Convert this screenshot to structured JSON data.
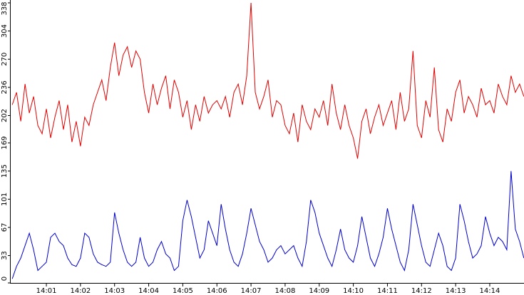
{
  "chart_data": {
    "type": "line",
    "categories": [
      null,
      null,
      null,
      null,
      null,
      null,
      null,
      null,
      "14:01",
      null,
      null,
      null,
      null,
      null,
      null,
      null,
      "14:02",
      null,
      null,
      null,
      null,
      null,
      null,
      null,
      "14:03",
      null,
      null,
      null,
      null,
      null,
      null,
      null,
      "14:04",
      null,
      null,
      null,
      null,
      null,
      null,
      null,
      "14:05",
      null,
      null,
      null,
      null,
      null,
      null,
      null,
      "14:06",
      null,
      null,
      null,
      null,
      null,
      null,
      null,
      "14:07",
      null,
      null,
      null,
      null,
      null,
      null,
      null,
      "14:08",
      null,
      null,
      null,
      null,
      null,
      null,
      null,
      "14:09",
      null,
      null,
      null,
      null,
      null,
      null,
      null,
      "14:10",
      null,
      null,
      null,
      null,
      null,
      null,
      null,
      "14:11",
      null,
      null,
      null,
      null,
      null,
      null,
      null,
      "14:12",
      null,
      null,
      null,
      null,
      null,
      null,
      null,
      "14:13",
      null,
      null,
      null,
      null,
      null,
      null,
      null,
      "14:14",
      null,
      null,
      null,
      null,
      null,
      null,
      null,
      null
    ],
    "series": [
      {
        "color": "#e00000",
        "values": [
          215,
          230,
          195,
          240,
          205,
          225,
          190,
          180,
          210,
          175,
          200,
          220,
          185,
          215,
          170,
          195,
          165,
          200,
          190,
          215,
          230,
          245,
          220,
          260,
          290,
          250,
          275,
          285,
          260,
          280,
          270,
          230,
          205,
          240,
          215,
          235,
          250,
          210,
          245,
          230,
          200,
          220,
          185,
          215,
          195,
          225,
          205,
          215,
          220,
          210,
          225,
          200,
          230,
          240,
          215,
          250,
          338,
          230,
          210,
          225,
          245,
          200,
          220,
          215,
          190,
          180,
          205,
          170,
          215,
          195,
          185,
          210,
          200,
          220,
          190,
          240,
          205,
          185,
          215,
          190,
          175,
          150,
          195,
          210,
          180,
          200,
          215,
          190,
          205,
          220,
          185,
          230,
          195,
          210,
          280,
          190,
          175,
          220,
          200,
          260,
          185,
          170,
          210,
          195,
          230,
          245,
          205,
          225,
          215,
          200,
          235,
          215,
          220,
          205,
          240,
          225,
          215,
          250,
          230,
          240,
          225
        ]
      },
      {
        "color": "#0000cc",
        "values": [
          5,
          20,
          30,
          45,
          60,
          40,
          15,
          20,
          25,
          55,
          60,
          50,
          45,
          30,
          22,
          20,
          30,
          60,
          55,
          35,
          25,
          22,
          20,
          25,
          85,
          60,
          40,
          25,
          20,
          25,
          55,
          30,
          20,
          25,
          40,
          50,
          35,
          30,
          15,
          20,
          75,
          100,
          80,
          55,
          30,
          40,
          75,
          60,
          45,
          95,
          65,
          40,
          25,
          20,
          35,
          60,
          90,
          70,
          50,
          40,
          25,
          30,
          40,
          45,
          35,
          40,
          45,
          30,
          20,
          50,
          100,
          85,
          60,
          45,
          30,
          20,
          40,
          65,
          40,
          30,
          25,
          45,
          80,
          55,
          30,
          20,
          35,
          55,
          90,
          65,
          45,
          25,
          15,
          40,
          95,
          70,
          45,
          25,
          20,
          40,
          60,
          45,
          20,
          15,
          30,
          95,
          75,
          50,
          30,
          35,
          45,
          80,
          60,
          45,
          55,
          50,
          40,
          135,
          65,
          50,
          30
        ]
      }
    ],
    "ylim": [
      0,
      338
    ],
    "yticks": [
      0,
      33,
      67,
      101,
      135,
      169,
      202,
      236,
      270,
      304,
      338
    ]
  }
}
